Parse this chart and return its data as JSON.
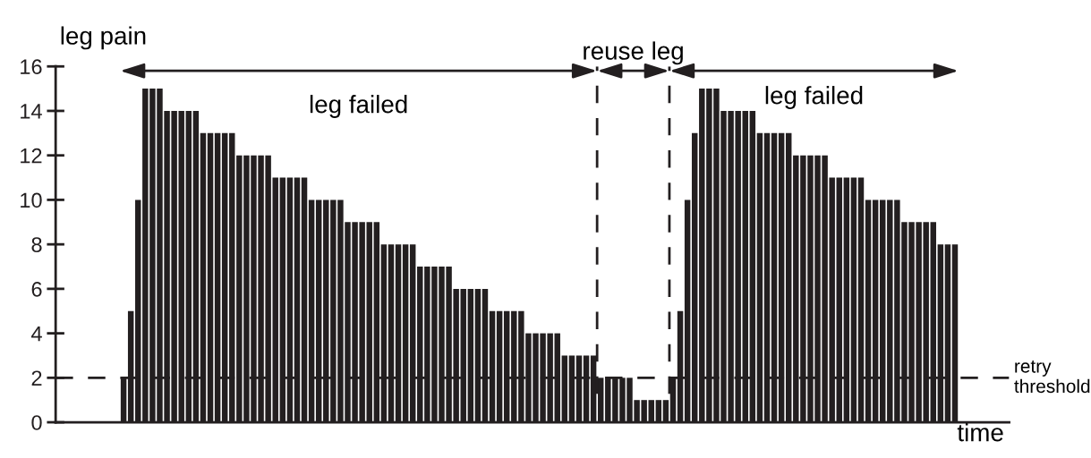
{
  "chart_data": {
    "type": "bar",
    "ylabel": "leg pain",
    "xlabel": "time",
    "categories": [
      null,
      null,
      null,
      null,
      null,
      null,
      null,
      null,
      null,
      null,
      null,
      null,
      null,
      null,
      null,
      null,
      null,
      null,
      null,
      null,
      null,
      null,
      null,
      null,
      null,
      null,
      null,
      null,
      null,
      null,
      null,
      null,
      null,
      null,
      null,
      null,
      null,
      null,
      null,
      null,
      null,
      null,
      null,
      null,
      null,
      null,
      null,
      null,
      null,
      null,
      null,
      null,
      null,
      null,
      null,
      null,
      null,
      null,
      null,
      null,
      null,
      null,
      null,
      null,
      null,
      null,
      null,
      null,
      null,
      null,
      null,
      null,
      null,
      null,
      null,
      null,
      null,
      null,
      null,
      null,
      null,
      null,
      null,
      null,
      null,
      null,
      null,
      null,
      null,
      null,
      null,
      null,
      null,
      null,
      null,
      null,
      null,
      null,
      null,
      null,
      null,
      null,
      null,
      null,
      null,
      null,
      null,
      null,
      null,
      null,
      null,
      null,
      null,
      null,
      null,
      null
    ],
    "values": [
      2,
      5,
      10,
      15,
      15,
      15,
      14,
      14,
      14,
      14,
      14,
      13,
      13,
      13,
      13,
      13,
      12,
      12,
      12,
      12,
      12,
      11,
      11,
      11,
      11,
      11,
      10,
      10,
      10,
      10,
      10,
      9,
      9,
      9,
      9,
      9,
      8,
      8,
      8,
      8,
      8,
      7,
      7,
      7,
      7,
      7,
      6,
      6,
      6,
      6,
      6,
      5,
      5,
      5,
      5,
      5,
      4,
      4,
      4,
      4,
      4,
      3,
      3,
      3,
      3,
      3,
      2,
      2,
      2,
      2,
      2,
      1,
      1,
      1,
      1,
      1,
      2,
      5,
      10,
      13,
      15,
      15,
      15,
      14,
      14,
      14,
      14,
      14,
      13,
      13,
      13,
      13,
      13,
      12,
      12,
      12,
      12,
      12,
      11,
      11,
      11,
      11,
      11,
      10,
      10,
      10,
      10,
      10,
      9,
      9,
      9,
      9,
      9,
      8,
      8,
      8
    ],
    "color": "#231f20",
    "ylim": [
      0,
      16
    ],
    "yticks": [
      0,
      2,
      4,
      6,
      8,
      10,
      12,
      14,
      16
    ],
    "tick_labels": "y",
    "grid": false,
    "ref_lines": [
      {
        "axis": "y",
        "value": 2,
        "label": "retry\nthreshold",
        "color": "#231f20",
        "line_style": "dashed"
      }
    ],
    "annotations": [
      "leg failed",
      "reuse leg",
      "leg failed"
    ]
  }
}
